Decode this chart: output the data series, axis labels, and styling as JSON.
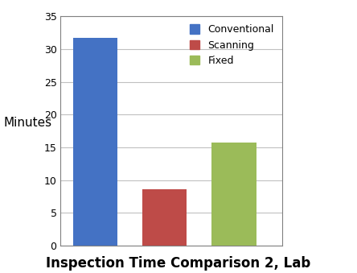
{
  "categories": [
    "Conventional",
    "Scanning",
    "Fixed"
  ],
  "values": [
    31.7,
    8.6,
    15.7
  ],
  "bar_colors": [
    "#4472C4",
    "#BE4B48",
    "#9BBB59"
  ],
  "title": "Inspection Time Comparison 2, Lab",
  "ylabel": "Minutes",
  "ylim": [
    0,
    35
  ],
  "yticks": [
    0,
    5,
    10,
    15,
    20,
    25,
    30,
    35
  ],
  "legend_labels": [
    "Conventional",
    "Scanning",
    "Fixed"
  ],
  "title_fontsize": 12,
  "ylabel_fontsize": 11,
  "tick_fontsize": 9,
  "background_color": "#ffffff",
  "grid_color": "#C0C0C0",
  "spine_color": "#808080",
  "bar_width": 0.65
}
